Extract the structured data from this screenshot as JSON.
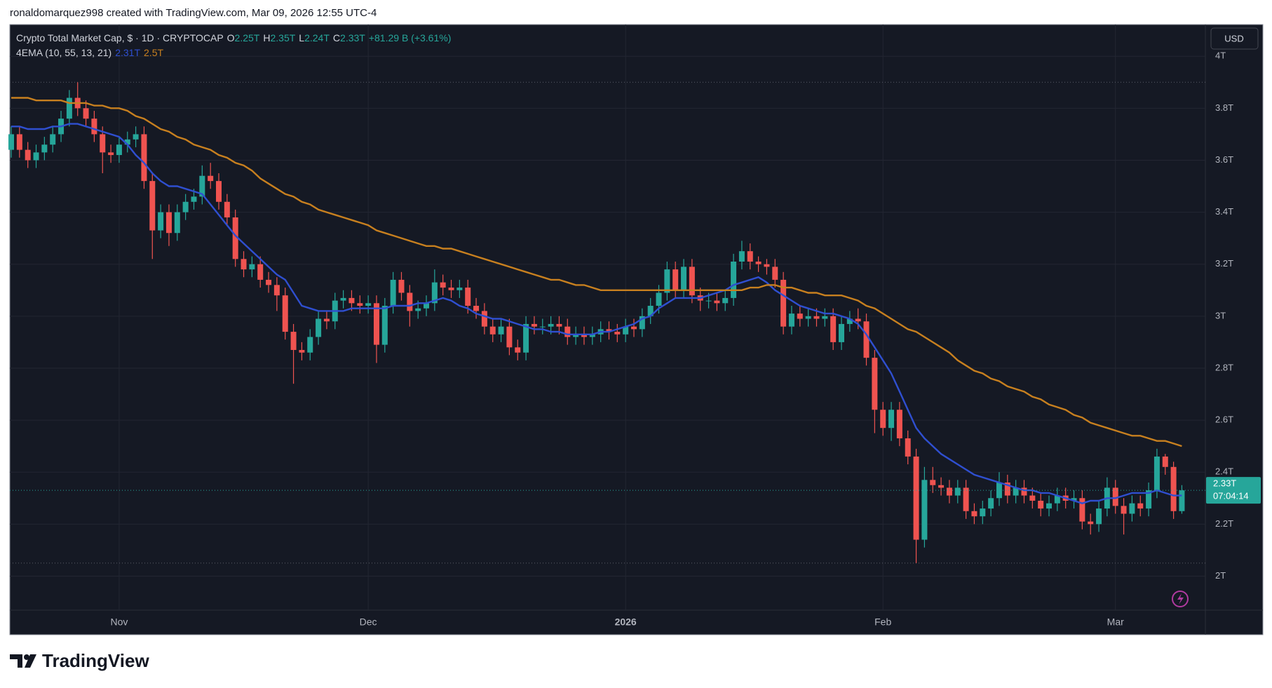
{
  "header": {
    "attribution": "ronaldomarquez998 created with TradingView.com, Mar 09, 2026 12:55 UTC-4"
  },
  "chart_data": {
    "type": "candlestick",
    "title": "Crypto Total Market Cap, $ · 1D · CRYPTOCAP",
    "ohlc_legend": [
      {
        "key": "O",
        "value": "2.25T"
      },
      {
        "key": "H",
        "value": "2.35T"
      },
      {
        "key": "L",
        "value": "2.24T"
      },
      {
        "key": "C",
        "value": "2.33T"
      }
    ],
    "change": "+81.29 B (+3.61%)",
    "indicator": {
      "name": "4EMA (10, 55, 13, 21)",
      "lines": [
        {
          "color": "#2f4fd0",
          "legend_value": "2.31T",
          "values": [
            3.73,
            3.73,
            3.72,
            3.72,
            3.72,
            3.73,
            3.73,
            3.74,
            3.74,
            3.73,
            3.72,
            3.71,
            3.7,
            3.69,
            3.66,
            3.62,
            3.59,
            3.55,
            3.52,
            3.5,
            3.5,
            3.49,
            3.48,
            3.47,
            3.43,
            3.39,
            3.35,
            3.31,
            3.28,
            3.25,
            3.22,
            3.19,
            3.16,
            3.14,
            3.09,
            3.04,
            3.03,
            3.02,
            3.02,
            3.02,
            3.02,
            3.03,
            3.03,
            3.03,
            3.03,
            3.03,
            3.04,
            3.04,
            3.04,
            3.05,
            3.05,
            3.06,
            3.07,
            3.06,
            3.04,
            3.03,
            3.01,
            3.0,
            2.99,
            2.99,
            2.98,
            2.97,
            2.96,
            2.95,
            2.95,
            2.94,
            2.94,
            2.93,
            2.93,
            2.93,
            2.93,
            2.94,
            2.94,
            2.95,
            2.96,
            2.97,
            2.99,
            3.0,
            3.03,
            3.05,
            3.07,
            3.07,
            3.07,
            3.07,
            3.08,
            3.09,
            3.1,
            3.12,
            3.13,
            3.14,
            3.15,
            3.13,
            3.1,
            3.08,
            3.06,
            3.04,
            3.03,
            3.02,
            3.01,
            3.01,
            3.0,
            2.99,
            2.97,
            2.93,
            2.88,
            2.83,
            2.78,
            2.71,
            2.64,
            2.57,
            2.53,
            2.5,
            2.47,
            2.45,
            2.43,
            2.41,
            2.39,
            2.38,
            2.37,
            2.36,
            2.35,
            2.34,
            2.33,
            2.33,
            2.32,
            2.32,
            2.31,
            2.3,
            2.29,
            2.28,
            2.29,
            2.29,
            2.3,
            2.3,
            2.31,
            2.32,
            2.32,
            2.32,
            2.33,
            2.32,
            2.31,
            2.31
          ]
        },
        {
          "color": "#c8801f",
          "legend_value": "2.5T",
          "values": [
            3.84,
            3.84,
            3.84,
            3.83,
            3.83,
            3.83,
            3.83,
            3.82,
            3.82,
            3.82,
            3.81,
            3.81,
            3.8,
            3.8,
            3.79,
            3.77,
            3.76,
            3.74,
            3.72,
            3.71,
            3.69,
            3.68,
            3.66,
            3.65,
            3.64,
            3.62,
            3.61,
            3.59,
            3.58,
            3.56,
            3.53,
            3.51,
            3.49,
            3.47,
            3.46,
            3.44,
            3.43,
            3.41,
            3.4,
            3.39,
            3.38,
            3.37,
            3.36,
            3.35,
            3.33,
            3.32,
            3.31,
            3.3,
            3.29,
            3.28,
            3.27,
            3.27,
            3.26,
            3.26,
            3.25,
            3.24,
            3.23,
            3.22,
            3.21,
            3.2,
            3.19,
            3.18,
            3.17,
            3.16,
            3.15,
            3.14,
            3.14,
            3.13,
            3.12,
            3.12,
            3.11,
            3.1,
            3.1,
            3.1,
            3.1,
            3.1,
            3.1,
            3.1,
            3.1,
            3.1,
            3.1,
            3.1,
            3.1,
            3.1,
            3.1,
            3.1,
            3.1,
            3.1,
            3.1,
            3.11,
            3.11,
            3.12,
            3.12,
            3.11,
            3.11,
            3.1,
            3.09,
            3.09,
            3.08,
            3.08,
            3.08,
            3.07,
            3.06,
            3.04,
            3.03,
            3.01,
            2.99,
            2.97,
            2.95,
            2.94,
            2.92,
            2.9,
            2.88,
            2.86,
            2.83,
            2.81,
            2.79,
            2.78,
            2.76,
            2.75,
            2.73,
            2.72,
            2.71,
            2.69,
            2.68,
            2.66,
            2.65,
            2.64,
            2.62,
            2.61,
            2.59,
            2.58,
            2.57,
            2.56,
            2.55,
            2.54,
            2.54,
            2.53,
            2.52,
            2.52,
            2.51,
            2.5
          ]
        }
      ]
    },
    "currency": "USD",
    "last_price_label": "2.33T",
    "countdown": "07:04:14",
    "categories": [
      null,
      null,
      null,
      null,
      null,
      null,
      null,
      null,
      null,
      null,
      null,
      null,
      null,
      "Nov",
      null,
      null,
      null,
      null,
      null,
      null,
      null,
      null,
      null,
      null,
      null,
      null,
      null,
      null,
      null,
      null,
      null,
      null,
      null,
      null,
      null,
      null,
      null,
      null,
      null,
      null,
      null,
      null,
      null,
      "Dec",
      null,
      null,
      null,
      null,
      null,
      null,
      null,
      null,
      null,
      null,
      null,
      null,
      null,
      null,
      null,
      null,
      null,
      null,
      null,
      null,
      null,
      null,
      null,
      null,
      null,
      null,
      null,
      null,
      null,
      null,
      "2026",
      null,
      null,
      null,
      null,
      null,
      null,
      null,
      null,
      null,
      null,
      null,
      null,
      null,
      null,
      null,
      null,
      null,
      null,
      null,
      null,
      null,
      null,
      null,
      null,
      null,
      null,
      null,
      null,
      null,
      null,
      "Feb",
      null,
      null,
      null,
      null,
      null,
      null,
      null,
      null,
      null,
      null,
      null,
      null,
      null,
      null,
      null,
      null,
      null,
      null,
      null,
      null,
      null,
      null,
      null,
      null,
      null,
      null,
      null,
      "Mar",
      null,
      null,
      null,
      null,
      null,
      null,
      null,
      null
    ],
    "open": [
      3.64,
      3.7,
      3.64,
      3.6,
      3.63,
      3.66,
      3.7,
      3.76,
      3.84,
      3.8,
      3.76,
      3.7,
      3.63,
      3.62,
      3.66,
      3.68,
      3.7,
      3.52,
      3.33,
      3.4,
      3.32,
      3.4,
      3.44,
      3.46,
      3.54,
      3.52,
      3.44,
      3.38,
      3.22,
      3.18,
      3.2,
      3.14,
      3.12,
      3.08,
      2.94,
      2.87,
      2.86,
      2.92,
      2.99,
      2.98,
      3.06,
      3.07,
      3.05,
      3.04,
      3.05,
      2.89,
      3.04,
      3.14,
      3.09,
      3.02,
      3.03,
      3.05,
      3.13,
      3.11,
      3.1,
      3.11,
      3.04,
      3.02,
      2.96,
      2.93,
      2.96,
      2.88,
      2.86,
      2.97,
      2.96,
      2.96,
      2.97,
      2.96,
      2.92,
      2.93,
      2.92,
      2.93,
      2.95,
      2.94,
      2.93,
      2.96,
      2.95,
      3.0,
      3.04,
      3.09,
      3.18,
      3.1,
      3.19,
      3.08,
      3.06,
      3.06,
      3.05,
      3.07,
      3.21,
      3.25,
      3.21,
      3.2,
      3.19,
      3.14,
      2.96,
      3.01,
      2.99,
      3.0,
      2.99,
      3.0,
      2.9,
      2.97,
      2.99,
      2.98,
      2.84,
      2.64,
      2.57,
      2.64,
      2.53,
      2.46,
      2.14,
      2.37,
      2.35,
      2.34,
      2.31,
      2.34,
      2.25,
      2.23,
      2.26,
      2.3,
      2.36,
      2.31,
      2.34,
      2.31,
      2.29,
      2.26,
      2.28,
      2.31,
      2.29,
      2.3,
      2.21,
      2.2,
      2.26,
      2.34,
      2.27,
      2.24,
      2.28,
      2.26,
      2.33,
      2.46,
      2.42,
      2.25
    ],
    "high": [
      3.73,
      3.73,
      3.67,
      3.66,
      3.69,
      3.73,
      3.79,
      3.87,
      3.9,
      3.83,
      3.79,
      3.73,
      3.66,
      3.69,
      3.71,
      3.73,
      3.73,
      3.55,
      3.43,
      3.43,
      3.43,
      3.47,
      3.49,
      3.58,
      3.59,
      3.55,
      3.47,
      3.41,
      3.25,
      3.23,
      3.23,
      3.17,
      3.15,
      3.11,
      2.97,
      2.9,
      2.95,
      3.02,
      3.02,
      3.09,
      3.1,
      3.1,
      3.08,
      3.08,
      3.08,
      3.07,
      3.17,
      3.17,
      3.12,
      3.06,
      3.08,
      3.18,
      3.16,
      3.14,
      3.14,
      3.14,
      3.07,
      3.05,
      2.99,
      2.99,
      2.99,
      2.91,
      3.0,
      3.0,
      2.99,
      3.0,
      3.0,
      2.99,
      2.96,
      2.96,
      2.96,
      2.98,
      2.98,
      2.97,
      2.99,
      2.99,
      3.03,
      3.07,
      3.12,
      3.21,
      3.21,
      3.22,
      3.22,
      3.11,
      3.09,
      3.09,
      3.1,
      3.24,
      3.29,
      3.28,
      3.23,
      3.22,
      3.22,
      3.17,
      3.04,
      3.04,
      3.03,
      3.03,
      3.03,
      3.03,
      3.0,
      3.02,
      3.03,
      3.01,
      2.87,
      2.67,
      2.67,
      2.67,
      2.56,
      2.49,
      2.42,
      2.42,
      2.38,
      2.37,
      2.37,
      2.37,
      2.28,
      2.29,
      2.33,
      2.4,
      2.39,
      2.37,
      2.37,
      2.34,
      2.32,
      2.31,
      2.34,
      2.34,
      2.33,
      2.33,
      2.24,
      2.29,
      2.38,
      2.37,
      2.3,
      2.31,
      2.31,
      2.36,
      2.49,
      2.47,
      2.44,
      2.35
    ],
    "low": [
      3.61,
      3.61,
      3.57,
      3.57,
      3.6,
      3.63,
      3.67,
      3.73,
      3.77,
      3.73,
      3.67,
      3.55,
      3.59,
      3.59,
      3.63,
      3.65,
      3.49,
      3.22,
      3.3,
      3.27,
      3.29,
      3.37,
      3.41,
      3.43,
      3.49,
      3.41,
      3.35,
      3.19,
      3.15,
      3.15,
      3.11,
      3.09,
      3.02,
      2.91,
      2.74,
      2.83,
      2.83,
      2.89,
      2.95,
      2.95,
      3.03,
      3.02,
      3.01,
      3.01,
      2.82,
      2.86,
      3.01,
      3.06,
      2.96,
      2.99,
      3.0,
      3.02,
      3.08,
      3.07,
      3.07,
      3.01,
      2.99,
      2.93,
      2.9,
      2.9,
      2.85,
      2.83,
      2.83,
      2.93,
      2.93,
      2.93,
      2.93,
      2.89,
      2.89,
      2.89,
      2.89,
      2.9,
      2.91,
      2.9,
      2.9,
      2.92,
      2.92,
      2.97,
      3.01,
      3.06,
      3.07,
      3.07,
      3.05,
      3.02,
      3.03,
      3.02,
      3.02,
      3.04,
      3.18,
      3.18,
      3.17,
      3.16,
      3.11,
      2.93,
      2.93,
      2.96,
      2.96,
      2.96,
      2.96,
      2.87,
      2.87,
      2.94,
      2.95,
      2.81,
      2.55,
      2.54,
      2.52,
      2.5,
      2.43,
      2.05,
      2.11,
      2.32,
      2.31,
      2.28,
      2.28,
      2.22,
      2.2,
      2.2,
      2.23,
      2.27,
      2.28,
      2.28,
      2.28,
      2.26,
      2.23,
      2.23,
      2.25,
      2.26,
      2.26,
      2.18,
      2.16,
      2.17,
      2.23,
      2.24,
      2.16,
      2.21,
      2.23,
      2.23,
      2.3,
      2.39,
      2.22,
      2.24
    ],
    "close": [
      3.7,
      3.64,
      3.6,
      3.63,
      3.66,
      3.7,
      3.76,
      3.84,
      3.8,
      3.76,
      3.7,
      3.63,
      3.62,
      3.66,
      3.68,
      3.7,
      3.52,
      3.33,
      3.4,
      3.32,
      3.4,
      3.44,
      3.46,
      3.54,
      3.52,
      3.44,
      3.38,
      3.22,
      3.18,
      3.2,
      3.14,
      3.12,
      3.08,
      2.94,
      2.87,
      2.86,
      2.92,
      2.99,
      2.98,
      3.06,
      3.07,
      3.05,
      3.04,
      3.05,
      2.89,
      3.04,
      3.14,
      3.09,
      3.02,
      3.03,
      3.05,
      3.13,
      3.11,
      3.1,
      3.11,
      3.04,
      3.02,
      2.96,
      2.93,
      2.96,
      2.88,
      2.86,
      2.97,
      2.96,
      2.96,
      2.97,
      2.96,
      2.92,
      2.93,
      2.92,
      2.93,
      2.95,
      2.94,
      2.93,
      2.96,
      2.95,
      3.0,
      3.04,
      3.09,
      3.18,
      3.1,
      3.19,
      3.08,
      3.06,
      3.06,
      3.05,
      3.07,
      3.21,
      3.25,
      3.21,
      3.2,
      3.19,
      3.14,
      2.96,
      3.01,
      2.99,
      3.0,
      2.99,
      3.0,
      2.9,
      2.97,
      2.99,
      2.98,
      2.84,
      2.64,
      2.57,
      2.64,
      2.53,
      2.46,
      2.14,
      2.37,
      2.35,
      2.34,
      2.31,
      2.34,
      2.25,
      2.23,
      2.26,
      2.3,
      2.36,
      2.31,
      2.34,
      2.31,
      2.29,
      2.26,
      2.28,
      2.31,
      2.29,
      2.3,
      2.21,
      2.2,
      2.26,
      2.34,
      2.27,
      2.24,
      2.28,
      2.26,
      2.33,
      2.46,
      2.42,
      2.25,
      2.33
    ],
    "up_color": "#26a69a",
    "down_color": "#ef5350",
    "ylim": [
      1.869,
      4.122
    ],
    "yticks": [
      {
        "value": 2,
        "label": "2T"
      },
      {
        "value": 2.2,
        "label": "2.2T"
      },
      {
        "value": 2.4,
        "label": "2.4T"
      },
      {
        "value": 2.6,
        "label": "2.6T"
      },
      {
        "value": 2.8,
        "label": "2.8T"
      },
      {
        "value": 3,
        "label": "3T"
      },
      {
        "value": 3.2,
        "label": "3.2T"
      },
      {
        "value": 3.4,
        "label": "3.4T"
      },
      {
        "value": 3.6,
        "label": "3.6T"
      },
      {
        "value": 3.8,
        "label": "3.8T"
      },
      {
        "value": 4,
        "label": "4T"
      }
    ],
    "grid": true
  },
  "footer": {
    "brand": "TradingView"
  }
}
